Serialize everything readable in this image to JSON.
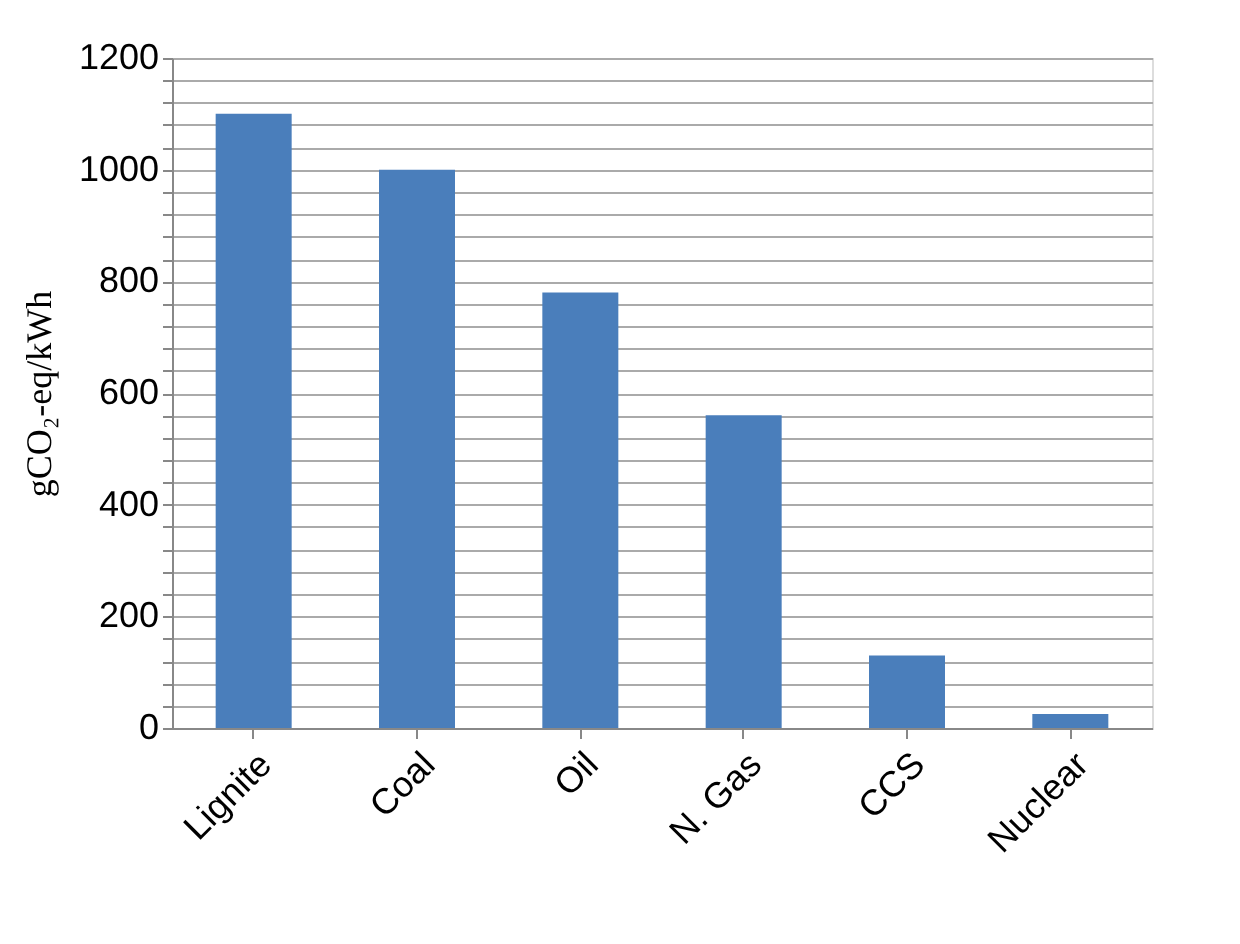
{
  "chart_data": {
    "type": "bar",
    "ylabel": "gCO₂-eq/kWh",
    "categories": [
      "Lignite",
      "Coal",
      "Oil",
      "N. Gas",
      "CCS",
      "Nuclear"
    ],
    "values": [
      1100,
      1000,
      780,
      560,
      130,
      25
    ],
    "color": "#4a7ebb",
    "ylim": [
      0,
      1200
    ],
    "yticks": [
      0,
      {
        "value": 40,
        "label": null
      },
      {
        "value": 80,
        "label": null
      },
      {
        "value": 120,
        "label": null
      },
      {
        "value": 160,
        "label": null
      },
      200,
      {
        "value": 240,
        "label": null
      },
      {
        "value": 280,
        "label": null
      },
      {
        "value": 320,
        "label": null
      },
      {
        "value": 360,
        "label": null
      },
      400,
      {
        "value": 440,
        "label": null
      },
      {
        "value": 480,
        "label": null
      },
      {
        "value": 520,
        "label": null
      },
      {
        "value": 560,
        "label": null
      },
      600,
      {
        "value": 640,
        "label": null
      },
      {
        "value": 680,
        "label": null
      },
      {
        "value": 720,
        "label": null
      },
      {
        "value": 760,
        "label": null
      },
      800,
      {
        "value": 840,
        "label": null
      },
      {
        "value": 880,
        "label": null
      },
      {
        "value": 920,
        "label": null
      },
      {
        "value": 960,
        "label": null
      },
      1000,
      {
        "value": 1040,
        "label": null
      },
      {
        "value": 1080,
        "label": null
      },
      {
        "value": 1120,
        "label": null
      },
      {
        "value": 1160,
        "label": null
      },
      1200
    ],
    "grid": "y"
  }
}
